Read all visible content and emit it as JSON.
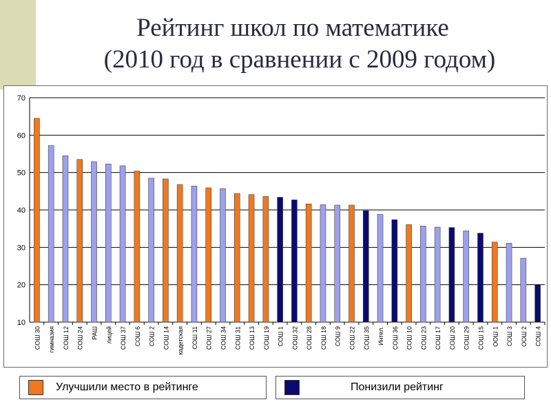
{
  "title": {
    "line1": "Рейтинг школ по математике",
    "line2": "(2010 год в сравнении с 2009 годом)"
  },
  "legend": {
    "improved": {
      "label": "Улучшили место в рейтинге",
      "color": "#f07820"
    },
    "declined": {
      "label": "Понизили рейтинг",
      "color": "#0a0a70"
    }
  },
  "colors": {
    "improved": "#f07820",
    "declined": "#0a0a70",
    "neutral": "#9da0ec",
    "grid": "#000000"
  },
  "chart_data": {
    "type": "bar",
    "ylim": [
      10,
      70
    ],
    "yticks": [
      10,
      20,
      30,
      40,
      50,
      60,
      70
    ],
    "grid": true,
    "legend_position": "bottom",
    "categories": [
      "СОШ 30",
      "гимназия",
      "СОШ 12",
      "СОШ 24",
      "РАШ",
      "лицей",
      "СОШ 37",
      "СОШ 6",
      "СОШ 2",
      "СОШ 14",
      "кадетская",
      "СОШ 11",
      "СОШ 27",
      "СОШ 34",
      "СОШ 31",
      "СОШ 13",
      "СОШ 19",
      "СОШ 1",
      "СОШ 32",
      "СОШ 28",
      "СОШ 18",
      "СОШ 9",
      "СОШ 22",
      "СОШ 35",
      "Интел.",
      "СОШ 36",
      "СОШ 10",
      "СОШ 23",
      "СОШ 17",
      "СОШ 20",
      "СОШ 29",
      "СОШ 15",
      "ООШ 1",
      "СОШ 3",
      "ООШ 2",
      "СОШ 4"
    ],
    "values": [
      64.5,
      57.2,
      54.5,
      53.5,
      52.9,
      52.3,
      51.8,
      50.4,
      48.5,
      48.3,
      46.8,
      46.4,
      45.9,
      45.7,
      44.4,
      44.1,
      43.6,
      43.4,
      42.7,
      41.6,
      41.4,
      41.3,
      41.3,
      39.8,
      38.8,
      37.4,
      36.1,
      35.7,
      35.4,
      35.3,
      34.4,
      33.8,
      31.4,
      31.1,
      27.1,
      20.1
    ],
    "status": [
      "improved",
      "neutral",
      "neutral",
      "improved",
      "neutral",
      "neutral",
      "neutral",
      "improved",
      "neutral",
      "improved",
      "improved",
      "neutral",
      "improved",
      "neutral",
      "improved",
      "improved",
      "improved",
      "declined",
      "declined",
      "improved",
      "neutral",
      "neutral",
      "improved",
      "declined",
      "neutral",
      "declined",
      "improved",
      "neutral",
      "neutral",
      "declined",
      "neutral",
      "declined",
      "improved",
      "neutral",
      "neutral",
      "declined"
    ]
  }
}
